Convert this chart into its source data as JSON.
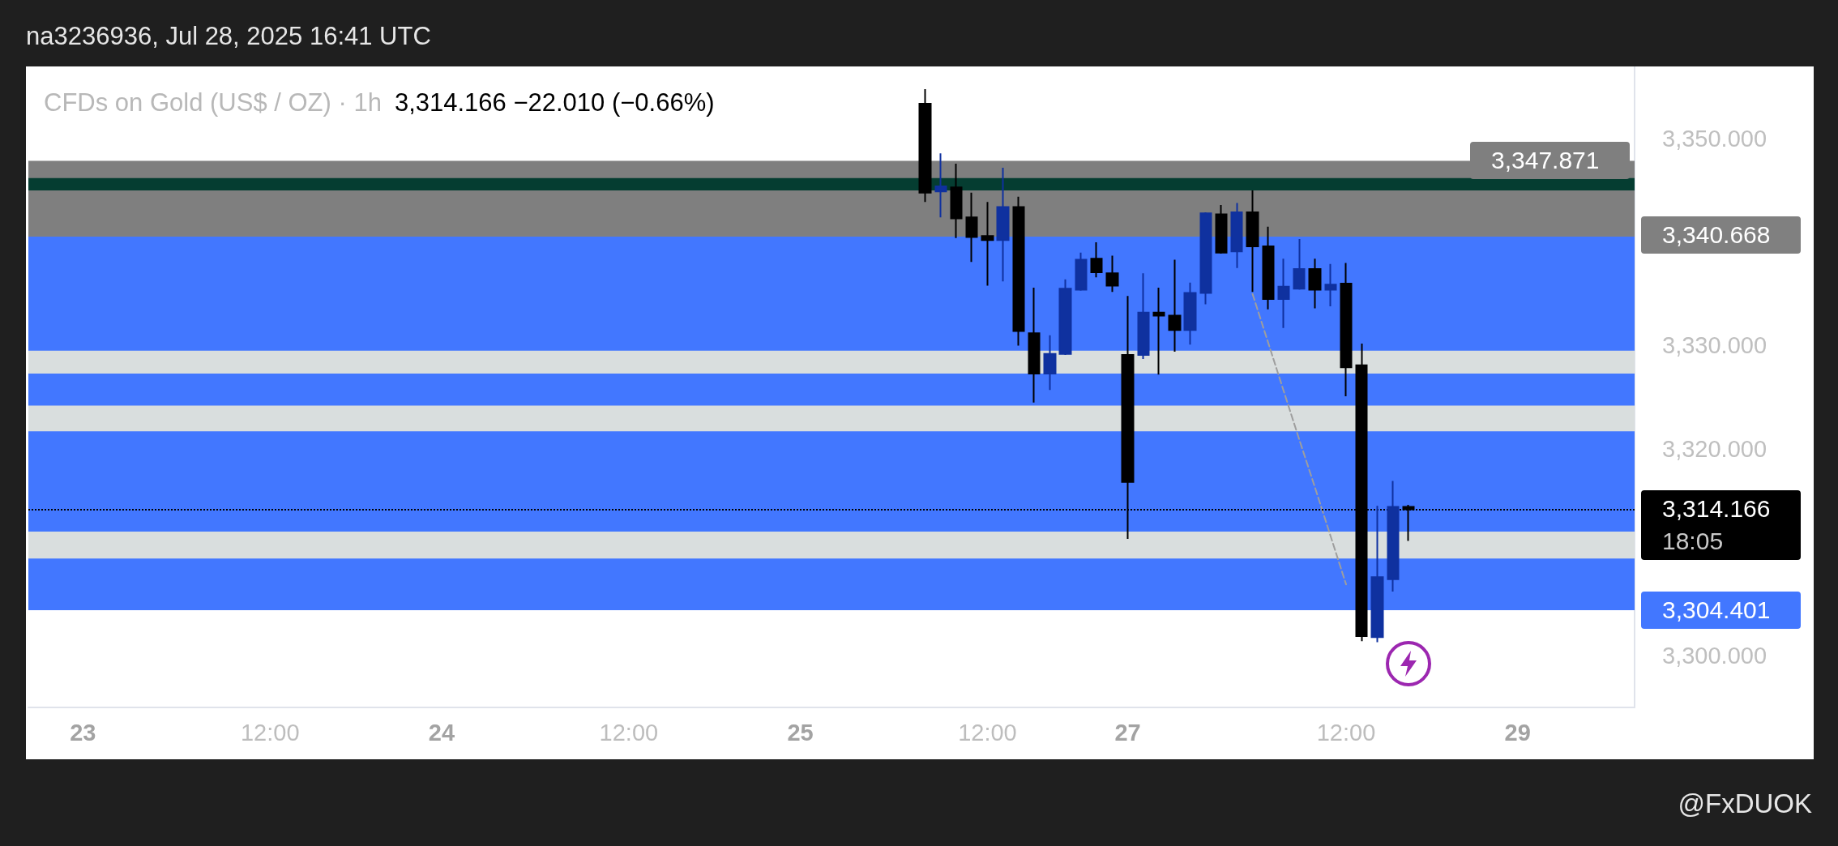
{
  "chart_data": {
    "type": "candlestick",
    "title": "CFDs on Gold (US$ / OZ) · 1h",
    "subtitle": "3,314.166 −22.010 (−0.66%)",
    "annotations": [
      "na3236936, Jul 28, 2025 16:41 UTC",
      "18:05",
      "@FxDUOK"
    ],
    "categories": [
      null,
      null,
      null,
      "23",
      null,
      null,
      null,
      null,
      null,
      null,
      null,
      null,
      null,
      null,
      null,
      "12:00",
      null,
      null,
      null,
      null,
      null,
      null,
      null,
      null,
      null,
      null,
      "24",
      null,
      null,
      null,
      null,
      null,
      null,
      null,
      null,
      null,
      null,
      null,
      "12:00",
      null,
      null,
      null,
      null,
      null,
      null,
      null,
      null,
      null,
      null,
      "25",
      null,
      null,
      null,
      null,
      null,
      null,
      null,
      null,
      null,
      null,
      null,
      "12:00",
      null,
      null,
      null,
      null,
      null,
      null,
      null,
      null,
      "27",
      null,
      null,
      null,
      null,
      null,
      null,
      null,
      null,
      null,
      null,
      null,
      null,
      null,
      "12:00",
      null,
      null,
      null,
      null,
      null,
      null,
      null,
      null,
      null,
      null,
      "29",
      null,
      null,
      null,
      null,
      null,
      null,
      null
    ],
    "ohlc": [
      null,
      null,
      null,
      null,
      null,
      null,
      null,
      null,
      null,
      null,
      null,
      null,
      null,
      null,
      null,
      null,
      null,
      null,
      null,
      null,
      null,
      null,
      null,
      null,
      null,
      null,
      null,
      null,
      null,
      null,
      null,
      null,
      null,
      null,
      null,
      null,
      null,
      null,
      null,
      null,
      null,
      null,
      null,
      null,
      null,
      null,
      null,
      null,
      null,
      null,
      null,
      null,
      null,
      null,
      null,
      null,
      null,
      [
        3353.4,
        3354.8,
        3343.9,
        3344.8
      ],
      [
        3344.9,
        3348.6,
        3342.4,
        3345.4
      ],
      [
        3345.3,
        3347.6,
        3340.4,
        3342.3
      ],
      [
        3342.4,
        3344.8,
        3338.1,
        3340.5
      ],
      [
        3340.6,
        3343.9,
        3335.8,
        3340.2
      ],
      [
        3340.2,
        3347.2,
        3336.2,
        3343.4
      ],
      [
        3343.4,
        3344.4,
        3330.0,
        3331.4
      ],
      [
        3331.2,
        3335.6,
        3324.5,
        3327.3
      ],
      [
        3327.3,
        3331.0,
        3325.7,
        3329.2
      ],
      [
        3329.2,
        3336.4,
        3329.1,
        3335.5
      ],
      [
        3335.4,
        3339.0,
        3335.3,
        3338.3
      ],
      [
        3338.4,
        3340.0,
        3336.6,
        3337.1
      ],
      [
        3337.0,
        3338.7,
        3335.2,
        3335.8
      ],
      [
        3329.1,
        3334.8,
        3311.3,
        3316.8
      ],
      [
        3329.1,
        3337.0,
        3328.7,
        3333.2
      ],
      [
        3333.2,
        3335.6,
        3327.2,
        3332.9
      ],
      [
        3332.9,
        3338.3,
        3329.4,
        3331.5
      ],
      [
        3331.5,
        3336.1,
        3330.1,
        3335.1
      ],
      [
        3335.1,
        3342.9,
        3334.0,
        3342.8
      ],
      [
        3342.7,
        3343.6,
        3338.9,
        3339.0
      ],
      [
        3339.1,
        3343.8,
        3337.5,
        3342.9
      ],
      [
        3342.9,
        3345.0,
        3335.2,
        3339.6
      ],
      [
        3339.6,
        3341.5,
        3333.5,
        3334.5
      ],
      [
        3334.5,
        3338.4,
        3331.7,
        3335.7
      ],
      [
        3335.5,
        3340.3,
        3335.4,
        3337.4
      ],
      [
        3337.4,
        3338.4,
        3333.6,
        3335.4
      ],
      [
        3335.4,
        3337.9,
        3333.8,
        3335.9
      ],
      [
        3336.0,
        3338.0,
        3325.1,
        3327.9
      ],
      [
        3328.1,
        3330.2,
        3301.4,
        3301.9
      ],
      [
        3301.8,
        3314.5,
        3301.3,
        3307.6
      ],
      [
        3307.4,
        3316.9,
        3306.2,
        3314.4
      ],
      [
        3314.4,
        3314.6,
        3311.1,
        3314.166
      ],
      null,
      null,
      null,
      null,
      null,
      null,
      null,
      null,
      null,
      null,
      null,
      null,
      null,
      null
    ],
    "colors": [
      null,
      null,
      null,
      null,
      null,
      null,
      null,
      null,
      null,
      null,
      null,
      null,
      null,
      null,
      null,
      null,
      null,
      null,
      null,
      null,
      null,
      null,
      null,
      null,
      null,
      null,
      null,
      null,
      null,
      null,
      null,
      null,
      null,
      null,
      null,
      null,
      null,
      null,
      null,
      null,
      null,
      null,
      null,
      null,
      null,
      null,
      null,
      null,
      null,
      null,
      null,
      null,
      null,
      null,
      null,
      null,
      null,
      "#000000",
      "#0f319f",
      "#000000",
      "#000000",
      "#000000",
      "#0f319f",
      "#000000",
      "#000000",
      "#0f319f",
      "#0f319f",
      "#0f319f",
      "#000000",
      "#000000",
      "#000000",
      "#0f319f",
      "#000000",
      "#000000",
      "#0f319f",
      "#0f319f",
      "#000000",
      "#0f319f",
      "#000000",
      "#000000",
      "#0f319f",
      "#0f319f",
      "#000000",
      "#0f319f",
      "#000000",
      "#000000",
      "#0f319f",
      "#0f319f",
      "#000000",
      null,
      null,
      null,
      null,
      null,
      null,
      null,
      null,
      null,
      null,
      null,
      null,
      null,
      null
    ],
    "series": [
      {
        "type": "line",
        "color": "#9e9e9e",
        "line_style": "dashed",
        "marker": "none",
        "values": [
          null,
          null,
          null,
          null,
          null,
          null,
          null,
          null,
          null,
          null,
          null,
          null,
          null,
          null,
          null,
          null,
          null,
          null,
          null,
          null,
          null,
          null,
          null,
          null,
          null,
          null,
          null,
          null,
          null,
          null,
          null,
          null,
          null,
          null,
          null,
          null,
          null,
          null,
          null,
          null,
          null,
          null,
          null,
          null,
          null,
          null,
          null,
          null,
          null,
          null,
          null,
          null,
          null,
          null,
          null,
          null,
          null,
          null,
          null,
          null,
          null,
          null,
          null,
          null,
          null,
          null,
          null,
          null,
          null,
          null,
          null,
          null,
          null,
          null,
          null,
          null,
          null,
          null,
          3335.0,
          3330.3,
          3325.6,
          3320.9,
          3316.3,
          3311.6,
          3306.9,
          null,
          null,
          null,
          null,
          null,
          null,
          null,
          null,
          null,
          null,
          null,
          null,
          null,
          null,
          null,
          null,
          null,
          null
        ]
      }
    ],
    "ylim": [
      3295,
      3357
    ],
    "yticks": [
      {
        "value": 3300,
        "label": "3,300.000"
      },
      {
        "value": 3320,
        "label": "3,320.000"
      },
      {
        "value": 3330,
        "label": "3,330.000"
      },
      {
        "value": 3350,
        "label": "3,350.000"
      }
    ],
    "ref_lines": [
      {
        "axis": "y",
        "value": 3314.166,
        "label": "3,314.166",
        "color": "#000000",
        "line_style": "dotted"
      },
      {
        "axis": "y",
        "value": 3340.668,
        "label": "3,340.668",
        "color": "#808080"
      }
    ],
    "bands": [
      {
        "axis": "y",
        "from": 3340.668,
        "to": 3347.871,
        "label": "3,347.871",
        "color": "#7f7f7f"
      },
      {
        "axis": "y",
        "from": 3340.668,
        "to": 3304.401,
        "label": "3,304.401",
        "color": "#4277ff"
      },
      {
        "axis": "y",
        "from": 3327.3,
        "to": 3329.5,
        "color": "#d9dede"
      },
      {
        "axis": "y",
        "from": 3321.7,
        "to": 3324.2,
        "color": "#d9dede"
      },
      {
        "axis": "y",
        "from": 3309.4,
        "to": 3312.0,
        "color": "#d9dede"
      },
      {
        "axis": "y",
        "from": 3345.0,
        "to": 3346.2,
        "color": "#053d31"
      }
    ],
    "grid": false
  }
}
